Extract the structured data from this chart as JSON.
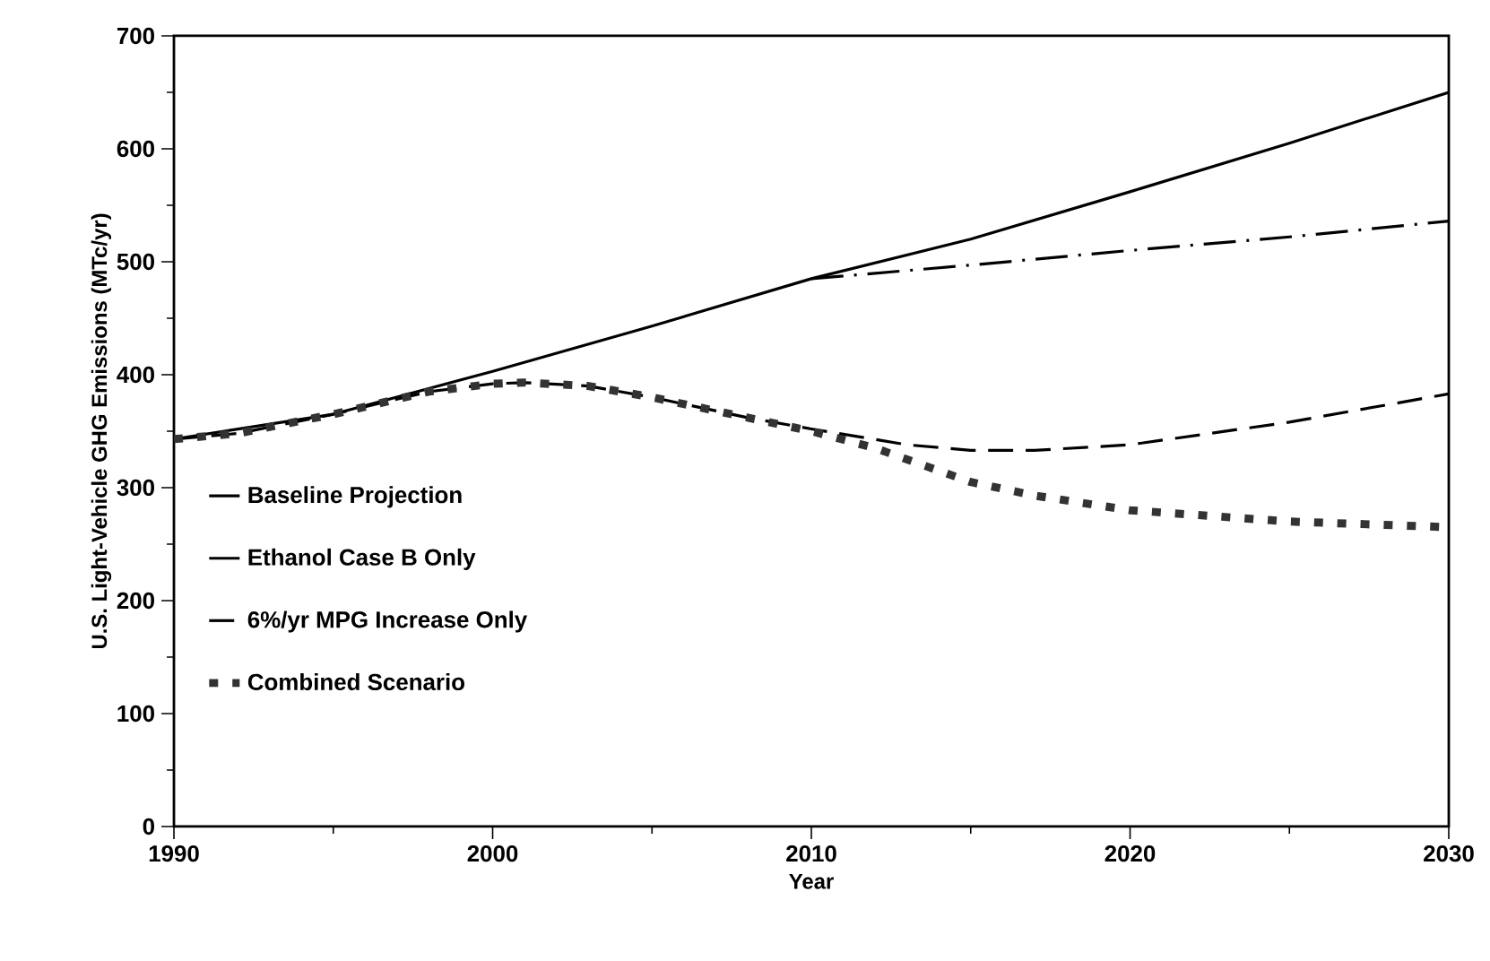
{
  "chart_data": {
    "type": "line",
    "xlabel": "Year",
    "ylabel": "U.S. Light-Vehicle GHG Emissions (MTc/yr)",
    "xlim": [
      1990,
      2030
    ],
    "ylim": [
      0,
      700
    ],
    "xticks": [
      1990,
      2000,
      2010,
      2020,
      2030
    ],
    "yticks": [
      0,
      100,
      200,
      300,
      400,
      500,
      600,
      700
    ],
    "legend": "left",
    "grid": false,
    "marker": "none",
    "series": [
      {
        "name": "Baseline Projection",
        "color": "#000000",
        "line_style": "solid",
        "x": [
          1990,
          1995,
          2000,
          2005,
          2010,
          2015,
          2020,
          2025,
          2030
        ],
        "values": [
          343,
          365,
          403,
          443,
          485,
          520,
          562,
          605,
          650
        ]
      },
      {
        "name": "Ethanol Case B Only",
        "color": "#000000",
        "line_style": "dashed",
        "x": [
          2010,
          2015,
          2020,
          2025,
          2030
        ],
        "values": [
          485,
          497,
          510,
          522,
          536
        ]
      },
      {
        "name": "6%/yr MPG Increase Only",
        "color": "#000000",
        "line_style": "dashed",
        "x": [
          1990,
          1992,
          1995,
          1998,
          2000,
          2001,
          2003,
          2005,
          2008,
          2010,
          2013,
          2015,
          2017,
          2020,
          2025,
          2030
        ],
        "values": [
          343,
          348,
          365,
          385,
          392,
          393,
          390,
          380,
          362,
          352,
          338,
          333,
          333,
          338,
          358,
          383
        ]
      },
      {
        "name": "Combined Scenario",
        "color": "#333333",
        "line_style": "dotted",
        "x": [
          1990,
          1992,
          1995,
          1998,
          2000,
          2001,
          2003,
          2005,
          2008,
          2010,
          2012,
          2015,
          2017,
          2020,
          2025,
          2030
        ],
        "values": [
          343,
          348,
          365,
          385,
          392,
          393,
          390,
          380,
          362,
          350,
          335,
          305,
          293,
          280,
          270,
          265
        ]
      }
    ]
  }
}
